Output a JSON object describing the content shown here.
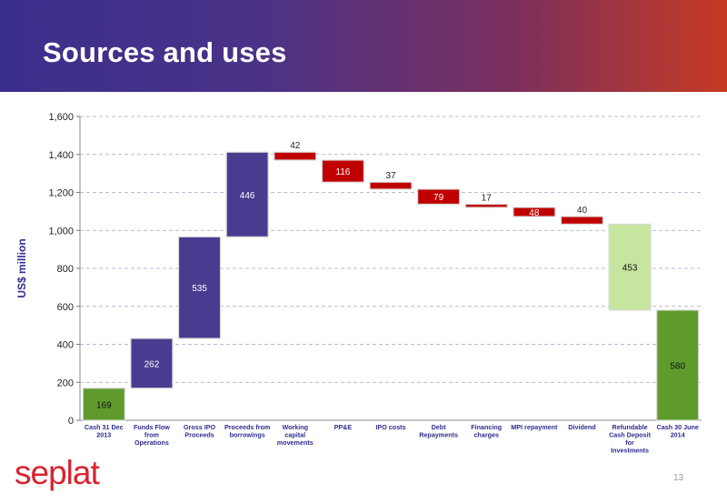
{
  "slide": {
    "title": "Sources and uses",
    "page_number": "13",
    "logo_text": "seplat"
  },
  "colors": {
    "purple": "#4b3b90",
    "red": "#c00000",
    "light_green": "#c6e6a0",
    "dark_green": "#5e9b2c",
    "axis_text": "#222222",
    "ylabel": "#2e2d8f"
  },
  "chart_data": {
    "type": "bar",
    "subtype": "waterfall",
    "ylabel": "US$ million",
    "ylim": [
      0,
      1600
    ],
    "yticks": [
      "0",
      "200",
      "400",
      "600",
      "800",
      "1,000",
      "1,200",
      "1,400",
      "1,600"
    ],
    "ytick_values": [
      0,
      200,
      400,
      600,
      800,
      1000,
      1200,
      1400,
      1600
    ],
    "grid": true,
    "categories": [
      [
        "Cash 31 Dec",
        "2013"
      ],
      [
        "Funds Flow",
        "from",
        "Operations"
      ],
      [
        "Gross IPO",
        "Proceeds"
      ],
      [
        "Proceeds from",
        "borrowings"
      ],
      [
        "Working",
        "capital",
        "movements"
      ],
      [
        "PP&E"
      ],
      [
        "IPO costs"
      ],
      [
        "Debt",
        "Repayments"
      ],
      [
        "Financing",
        "charges"
      ],
      [
        "MPI repayment"
      ],
      [
        "Dividend"
      ],
      [
        "Refundable",
        "Cash Deposit",
        "for",
        "Investments"
      ],
      [
        "Cash 30 June",
        "2014"
      ]
    ],
    "values": [
      169,
      262,
      535,
      446,
      42,
      116,
      37,
      79,
      17,
      48,
      40,
      453,
      580
    ],
    "labels": [
      "169",
      "262",
      "535",
      "446",
      "42",
      "116",
      "37",
      "79",
      "17",
      "48",
      "40",
      "453",
      "580"
    ],
    "bar_types": [
      "total",
      "increase",
      "increase",
      "increase",
      "decrease",
      "decrease",
      "decrease",
      "decrease",
      "decrease",
      "decrease",
      "decrease",
      "decrease_light",
      "total"
    ],
    "bases": [
      0,
      169,
      431,
      966,
      1370,
      1254,
      1217,
      1138,
      1121,
      1073,
      1033,
      580,
      0
    ],
    "label_outside": [
      false,
      false,
      false,
      false,
      true,
      false,
      true,
      false,
      true,
      false,
      true,
      false,
      false
    ]
  }
}
